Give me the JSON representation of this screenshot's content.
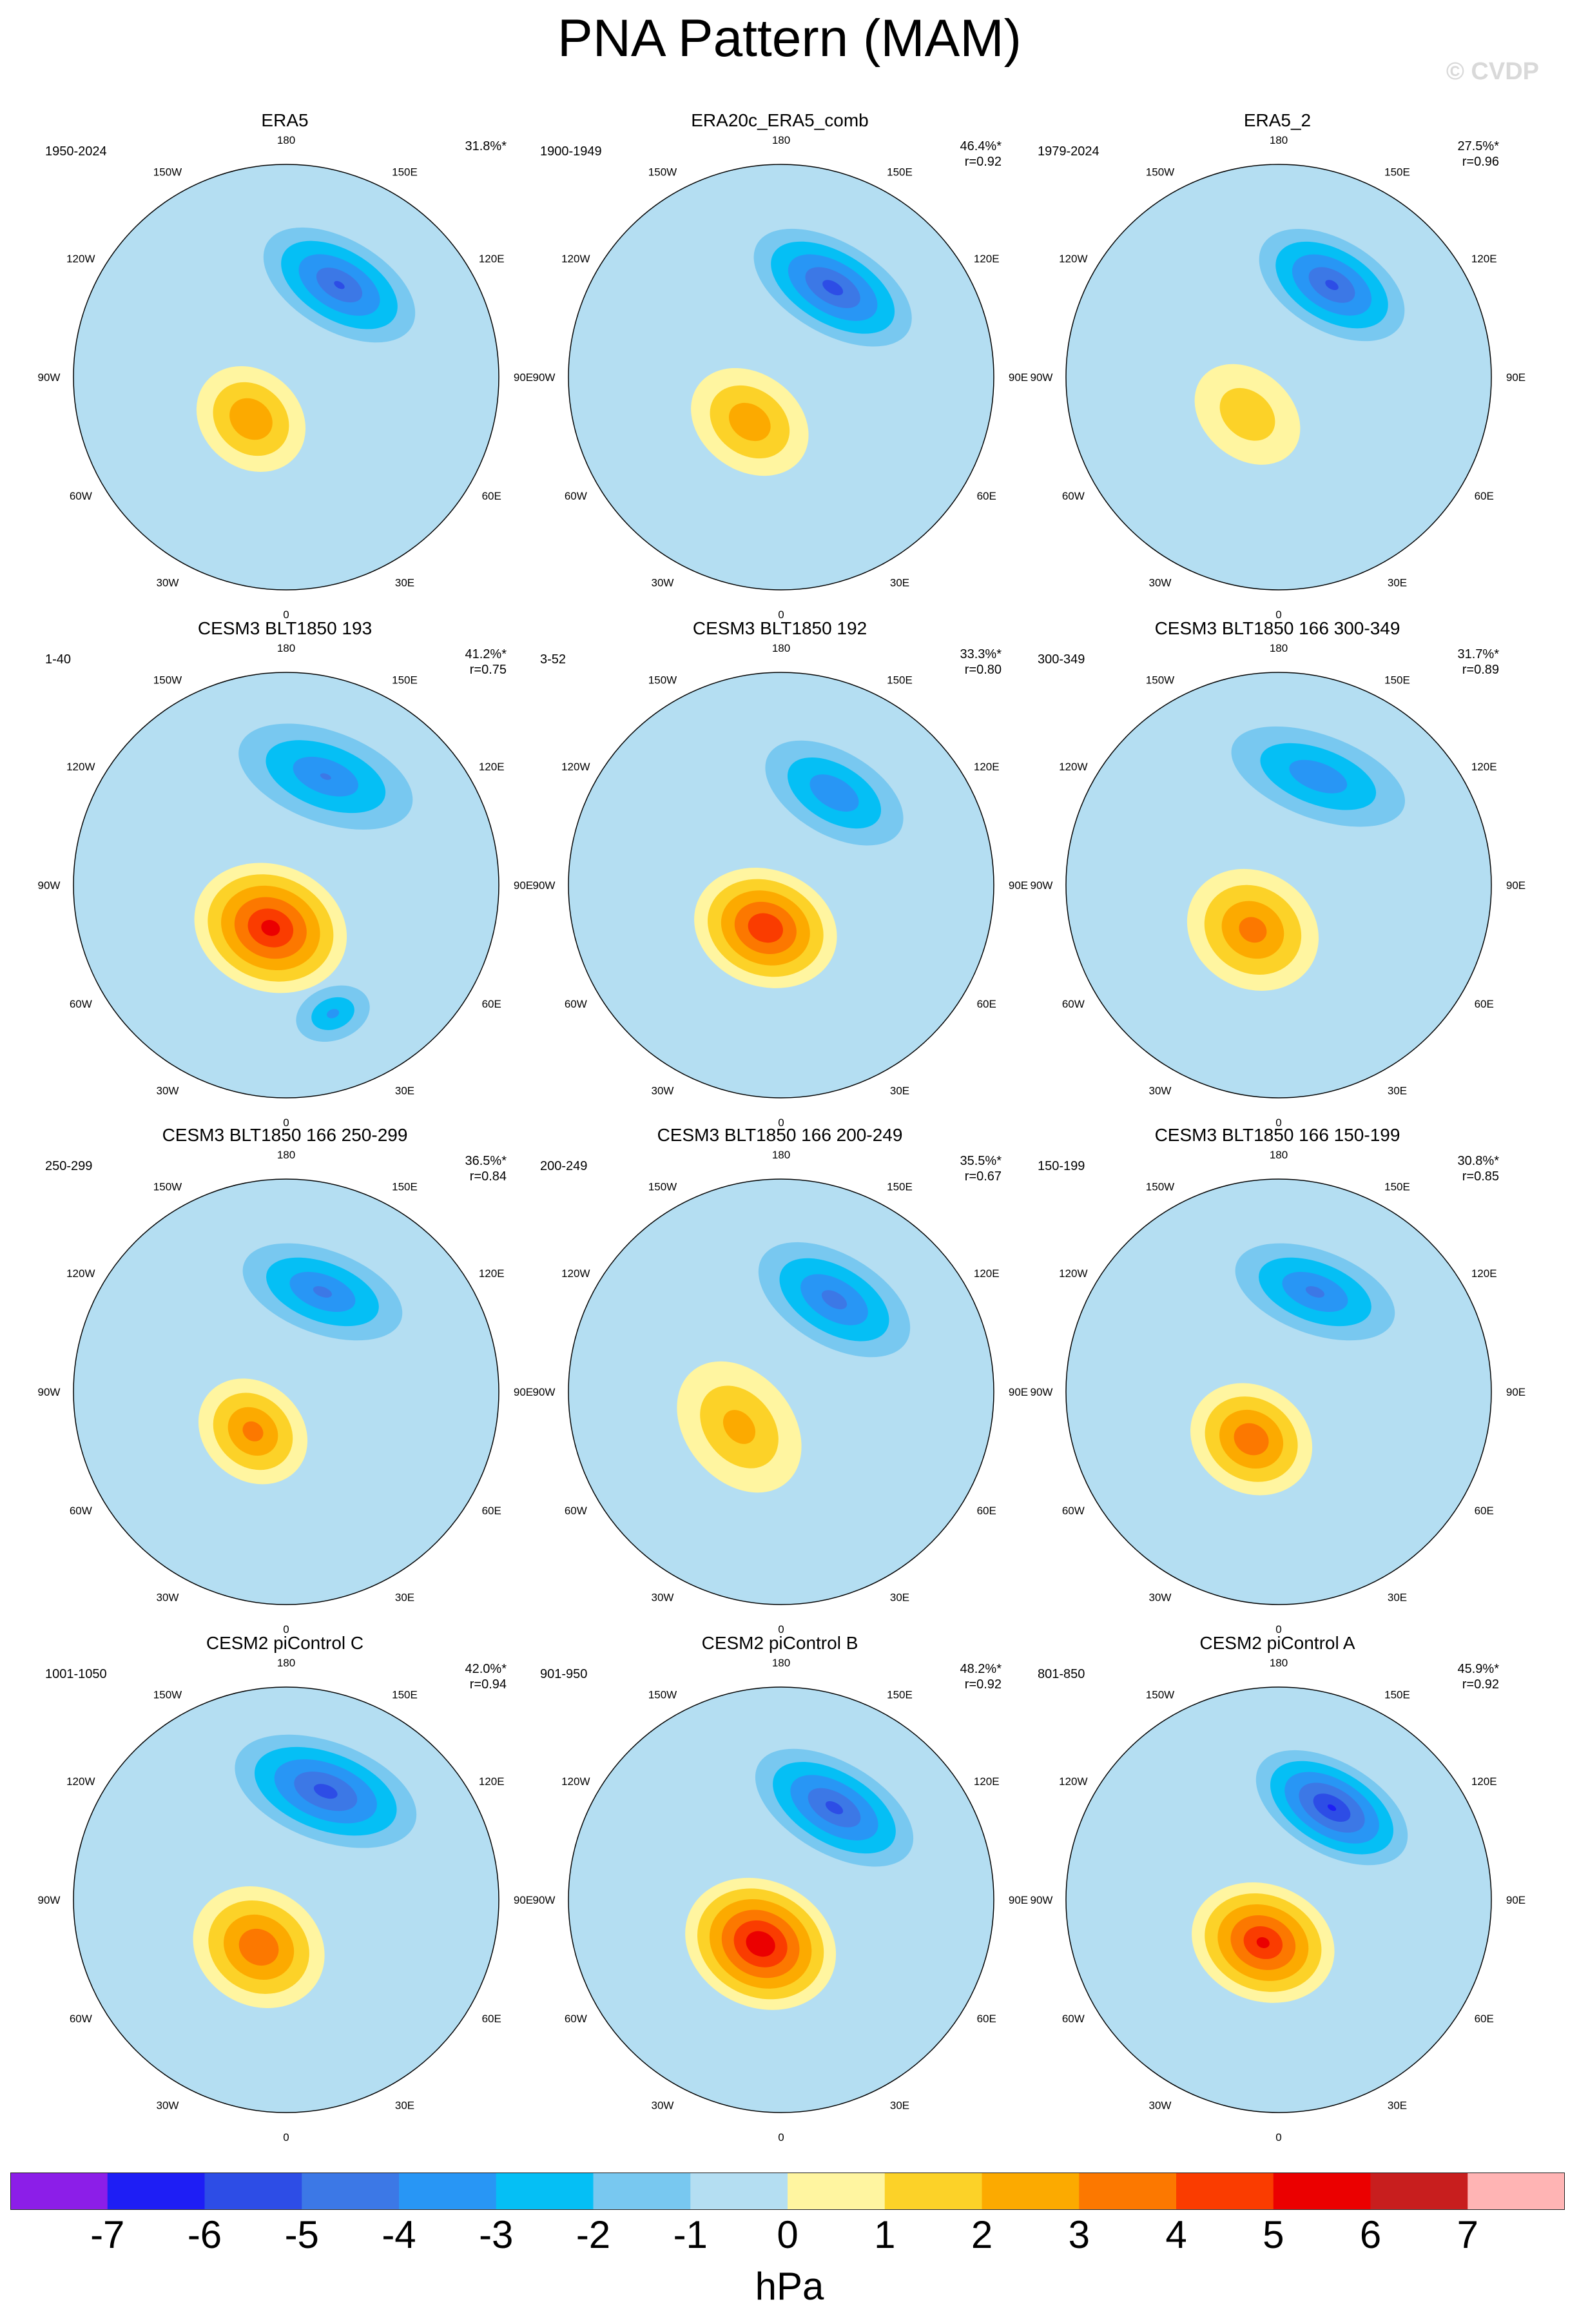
{
  "title": "PNA Pattern (MAM)",
  "watermark": "© CVDP",
  "chart_data": [
    {
      "type": "heatmap",
      "title": "ERA5",
      "period": "1950-2024",
      "pct": "31.8%*",
      "r": "",
      "blobs": [
        {
          "lon": 150,
          "lat": 55,
          "amp": -4.3,
          "w": 22,
          "h": 12
        },
        {
          "lon": -40,
          "lat": 72,
          "amp": 2.8,
          "w": 12,
          "h": 10
        }
      ]
    },
    {
      "type": "heatmap",
      "title": "ERA20c_ERA5_comb",
      "period": "1900-1949",
      "pct": "46.4%*",
      "r": "r=0.92",
      "blobs": [
        {
          "lon": 150,
          "lat": 56,
          "amp": -4.6,
          "w": 23,
          "h": 12
        },
        {
          "lon": -35,
          "lat": 72,
          "amp": 2.6,
          "w": 13,
          "h": 10
        }
      ]
    },
    {
      "type": "heatmap",
      "title": "ERA5_2",
      "period": "1979-2024",
      "pct": "27.5%*",
      "r": "r=0.96",
      "blobs": [
        {
          "lon": 150,
          "lat": 55,
          "amp": -4.4,
          "w": 21,
          "h": 12
        },
        {
          "lon": -40,
          "lat": 74,
          "amp": 1.6,
          "w": 12,
          "h": 9
        }
      ]
    },
    {
      "type": "heatmap",
      "title": "CESM3 BLT1850 193",
      "period": "1-40",
      "pct": "41.2%*",
      "r": "r=0.75",
      "blobs": [
        {
          "lon": 160,
          "lat": 52,
          "amp": -3.2,
          "w": 24,
          "h": 12
        },
        {
          "lon": -20,
          "lat": 75,
          "amp": 5.2,
          "w": 16,
          "h": 13
        },
        {
          "lon": 20,
          "lat": 45,
          "amp": -2.4,
          "w": 10,
          "h": 7
        }
      ]
    },
    {
      "type": "heatmap",
      "title": "CESM3 BLT1850 192",
      "period": "3-52",
      "pct": "33.3%*",
      "r": "r=0.80",
      "blobs": [
        {
          "lon": 150,
          "lat": 55,
          "amp": -3.1,
          "w": 20,
          "h": 11
        },
        {
          "lon": -20,
          "lat": 75,
          "amp": 4.8,
          "w": 15,
          "h": 12
        }
      ]
    },
    {
      "type": "heatmap",
      "title": "CESM3 BLT1850 166 300-349",
      "period": "300-349",
      "pct": "31.7%*",
      "r": "r=0.89",
      "blobs": [
        {
          "lon": 160,
          "lat": 52,
          "amp": -3.0,
          "w": 24,
          "h": 11
        },
        {
          "lon": -30,
          "lat": 73,
          "amp": 3.3,
          "w": 14,
          "h": 12
        }
      ]
    },
    {
      "type": "heatmap",
      "title": "CESM3 BLT1850 166 250-299",
      "period": "250-299",
      "pct": "36.5%*",
      "r": "r=0.84",
      "blobs": [
        {
          "lon": 160,
          "lat": 55,
          "amp": -3.4,
          "w": 22,
          "h": 11
        },
        {
          "lon": -40,
          "lat": 73,
          "amp": 3.2,
          "w": 12,
          "h": 10
        }
      ]
    },
    {
      "type": "heatmap",
      "title": "CESM3 BLT1850 166 200-249",
      "period": "200-249",
      "pct": "35.5%*",
      "r": "r=0.67",
      "blobs": [
        {
          "lon": 150,
          "lat": 55,
          "amp": -3.6,
          "w": 22,
          "h": 12
        },
        {
          "lon": -50,
          "lat": 72,
          "amp": 2.2,
          "w": 15,
          "h": 11
        }
      ]
    },
    {
      "type": "heatmap",
      "title": "CESM3 BLT1850 166 150-199",
      "period": "150-199",
      "pct": "30.8%*",
      "r": "r=0.85",
      "blobs": [
        {
          "lon": 160,
          "lat": 55,
          "amp": -3.4,
          "w": 22,
          "h": 11
        },
        {
          "lon": -30,
          "lat": 72,
          "amp": 3.7,
          "w": 13,
          "h": 11
        }
      ]
    },
    {
      "type": "heatmap",
      "title": "CESM2 piControl C",
      "period": "1001-1050",
      "pct": "42.0%*",
      "r": "r=0.94",
      "blobs": [
        {
          "lon": 160,
          "lat": 52,
          "amp": -4.6,
          "w": 25,
          "h": 13
        },
        {
          "lon": -30,
          "lat": 72,
          "amp": 3.8,
          "w": 14,
          "h": 12
        }
      ]
    },
    {
      "type": "heatmap",
      "title": "CESM2 piControl B",
      "period": "901-950",
      "pct": "48.2%*",
      "r": "r=0.92",
      "blobs": [
        {
          "lon": 150,
          "lat": 55,
          "amp": -4.5,
          "w": 23,
          "h": 12
        },
        {
          "lon": -25,
          "lat": 74,
          "amp": 5.7,
          "w": 16,
          "h": 13
        }
      ]
    },
    {
      "type": "heatmap",
      "title": "CESM2 piControl A",
      "period": "801-850",
      "pct": "45.9%*",
      "r": "r=0.92",
      "blobs": [
        {
          "lon": 150,
          "lat": 55,
          "amp": -5.3,
          "w": 22,
          "h": 12
        },
        {
          "lon": -20,
          "lat": 75,
          "amp": 5.0,
          "w": 15,
          "h": 12
        }
      ]
    }
  ],
  "lon_labels": [
    "180",
    "150E",
    "120E",
    "90E",
    "60E",
    "30E",
    "0",
    "30W",
    "60W",
    "90W",
    "120W",
    "150W"
  ],
  "colorbar": {
    "colors": [
      "#8c1ee8",
      "#1e1ef5",
      "#2d4de6",
      "#3c78e6",
      "#2896f5",
      "#05bff5",
      "#78c8f0",
      "#b4def2",
      "#fff5a0",
      "#fcd228",
      "#fcaa00",
      "#fc7800",
      "#fa3c00",
      "#eb0000",
      "#c81e1e",
      "#ffb4b4"
    ],
    "ticks": [
      "-7",
      "-6",
      "-5",
      "-4",
      "-3",
      "-2",
      "-1",
      "0",
      "1",
      "2",
      "3",
      "4",
      "5",
      "6",
      "7"
    ],
    "units": "hPa"
  }
}
